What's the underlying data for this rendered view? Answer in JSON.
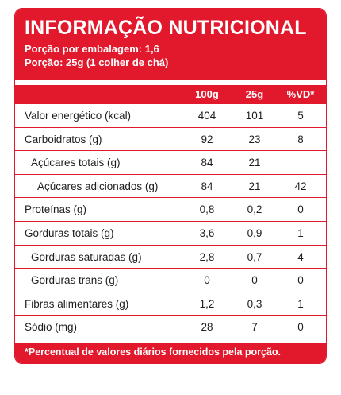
{
  "header": {
    "title": "INFORMAÇÃO NUTRICIONAL",
    "servings_per_package": "Porção por embalagem: 1,6",
    "serving_size": "Porção: 25g (1 colher de chá)"
  },
  "columns": [
    "100g",
    "25g",
    "%VD*"
  ],
  "rows": [
    {
      "label": "Valor energético (kcal)",
      "v100": "404",
      "v25": "101",
      "vd": "5"
    },
    {
      "label": "Carboidratos (g)",
      "v100": "92",
      "v25": "23",
      "vd": "8"
    },
    {
      "label": "Açúcares totais (g)",
      "v100": "84",
      "v25": "21",
      "vd": ""
    },
    {
      "label": "Açúcares adicionados (g)",
      "v100": "84",
      "v25": "21",
      "vd": "42"
    },
    {
      "label": "Proteínas (g)",
      "v100": "0,8",
      "v25": "0,2",
      "vd": "0"
    },
    {
      "label": "Gorduras totais (g)",
      "v100": "3,6",
      "v25": "0,9",
      "vd": "1"
    },
    {
      "label": "Gorduras saturadas (g)",
      "v100": "2,8",
      "v25": "0,7",
      "vd": "4"
    },
    {
      "label": "Gorduras trans (g)",
      "v100": "0",
      "v25": "0",
      "vd": "0"
    },
    {
      "label": "Fibras alimentares (g)",
      "v100": "1,2",
      "v25": "0,3",
      "vd": "1"
    },
    {
      "label": "Sódio (mg)",
      "v100": "28",
      "v25": "7",
      "vd": "0"
    }
  ],
  "footer": "*Percentual de valores diários fornecidos pela porção.",
  "colors": {
    "accent": "#e2182c",
    "text": "#1e1e1e"
  }
}
